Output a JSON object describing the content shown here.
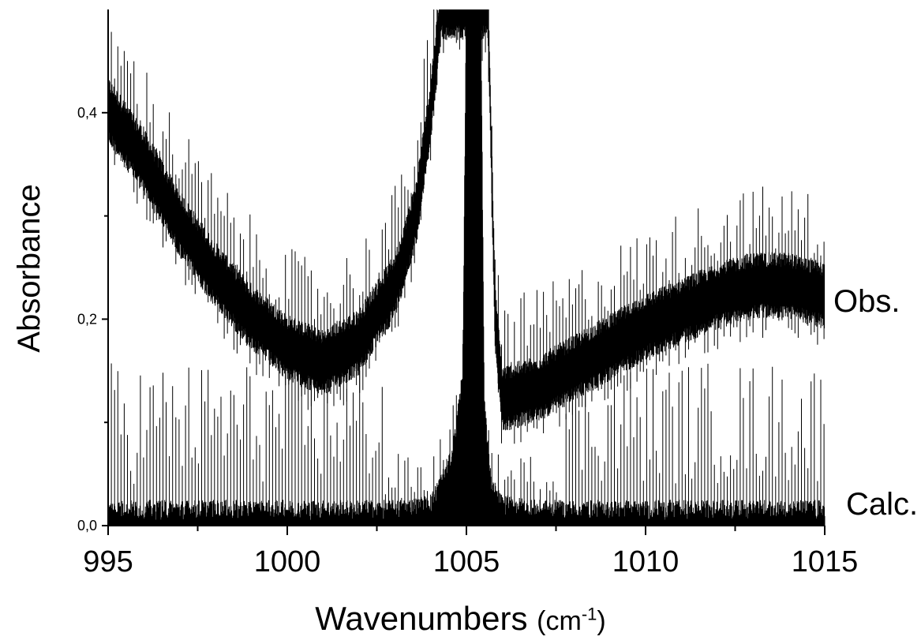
{
  "chart_data": {
    "type": "line",
    "xlabel_main": "Wavenumbers",
    "xlabel_units": "(cm",
    "xlabel_units_sup": "-1",
    "xlabel_units_close": ")",
    "ylabel": "Absorbance",
    "xlim": [
      995,
      1015
    ],
    "ylim": [
      0,
      0.5
    ],
    "grid": false,
    "x_ticks": [
      995,
      1000,
      1005,
      1010,
      1015
    ],
    "x_tick_labels": [
      "995",
      "1000",
      "1005",
      "1010",
      "1015"
    ],
    "y_ticks": [
      0.0,
      0.2,
      0.4
    ],
    "y_tick_labels": [
      "0,0",
      "0,2",
      "0,4"
    ],
    "series": [
      {
        "name": "Obs.",
        "color": "#000000",
        "baseline": [
          [
            995.0,
            0.4
          ],
          [
            996.0,
            0.35
          ],
          [
            997.0,
            0.29
          ],
          [
            998.0,
            0.24
          ],
          [
            999.0,
            0.2
          ],
          [
            1000.0,
            0.17
          ],
          [
            1001.0,
            0.155
          ],
          [
            1002.0,
            0.175
          ],
          [
            1003.0,
            0.23
          ],
          [
            1003.6,
            0.3
          ],
          [
            1004.0,
            0.4
          ],
          [
            1004.3,
            0.5
          ],
          [
            1005.6,
            0.5
          ],
          [
            1005.8,
            0.2
          ],
          [
            1006.0,
            0.12
          ],
          [
            1007.0,
            0.13
          ],
          [
            1008.0,
            0.15
          ],
          [
            1009.0,
            0.17
          ],
          [
            1010.0,
            0.19
          ],
          [
            1011.0,
            0.205
          ],
          [
            1012.0,
            0.22
          ],
          [
            1013.0,
            0.23
          ],
          [
            1014.0,
            0.23
          ],
          [
            1015.0,
            0.22
          ]
        ]
      },
      {
        "name": "Calc.",
        "color": "#000000",
        "baseline": [
          [
            995.0,
            0.0
          ],
          [
            1003.0,
            0.0
          ],
          [
            1004.0,
            0.005
          ],
          [
            1004.6,
            0.05
          ],
          [
            1004.9,
            0.13
          ],
          [
            1005.0,
            0.5
          ],
          [
            1005.4,
            0.5
          ],
          [
            1005.5,
            0.1
          ],
          [
            1005.7,
            0.02
          ],
          [
            1006.0,
            0.005
          ],
          [
            1007.0,
            0.0
          ],
          [
            1015.0,
            0.0
          ]
        ]
      }
    ]
  }
}
